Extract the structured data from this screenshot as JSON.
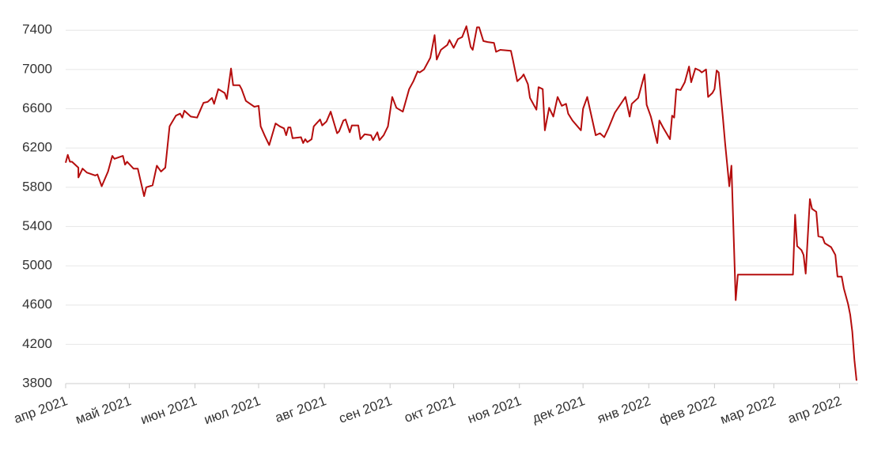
{
  "chart_data": {
    "type": "line",
    "color": "#b50d0d",
    "grid": true,
    "x": [
      0,
      1,
      2,
      3,
      6,
      6,
      8,
      10,
      14,
      15,
      17,
      20,
      22,
      23,
      27,
      28,
      29,
      32,
      34,
      37,
      38,
      41,
      43,
      45,
      47,
      49,
      52,
      54,
      55,
      56,
      59,
      62,
      65,
      67,
      69,
      70,
      72,
      75,
      76,
      78,
      79,
      82,
      83,
      85,
      89,
      91,
      92,
      94,
      96,
      99,
      101,
      103,
      104,
      105,
      106,
      107,
      111,
      112,
      113,
      114,
      116,
      117,
      120,
      121,
      123,
      125,
      128,
      129,
      131,
      132,
      134,
      135,
      138,
      139,
      141,
      144,
      145,
      147,
      148,
      150,
      152,
      154,
      156,
      159,
      162,
      164,
      166,
      167,
      169,
      172,
      174,
      175,
      177,
      180,
      181,
      183,
      185,
      187,
      189,
      191,
      192,
      194,
      195,
      197,
      199,
      202,
      203,
      205,
      210,
      211,
      213,
      215,
      216,
      218,
      219,
      222,
      223,
      225,
      226,
      228,
      230,
      232,
      234,
      236,
      237,
      239,
      243,
      244,
      246,
      247,
      250,
      252,
      254,
      256,
      259,
      264,
      266,
      267,
      270,
      273,
      274,
      276,
      279,
      280,
      282,
      285,
      286,
      287,
      288,
      290,
      292,
      294,
      295,
      297,
      299,
      300,
      302,
      303,
      305,
      306,
      307,
      308,
      310,
      311,
      313,
      314,
      316,
      317,
      343,
      344,
      345,
      347,
      348,
      349,
      351,
      352,
      354,
      355,
      357,
      358,
      361,
      363,
      364,
      366,
      367,
      369,
      370,
      371,
      372,
      373
    ],
    "values": [
      6050,
      6130,
      6060,
      6060,
      6000,
      5900,
      5990,
      5950,
      5920,
      5930,
      5810,
      5960,
      6120,
      6090,
      6120,
      6030,
      6060,
      5990,
      5990,
      5710,
      5800,
      5820,
      6020,
      5960,
      6000,
      6420,
      6530,
      6550,
      6510,
      6580,
      6520,
      6510,
      6660,
      6670,
      6710,
      6650,
      6800,
      6760,
      6700,
      7010,
      6840,
      6840,
      6800,
      6680,
      6620,
      6630,
      6420,
      6320,
      6230,
      6450,
      6420,
      6400,
      6330,
      6410,
      6410,
      6300,
      6310,
      6250,
      6290,
      6260,
      6290,
      6420,
      6490,
      6430,
      6470,
      6570,
      6350,
      6370,
      6480,
      6490,
      6360,
      6430,
      6430,
      6290,
      6340,
      6330,
      6280,
      6360,
      6280,
      6330,
      6420,
      6720,
      6610,
      6570,
      6800,
      6880,
      6980,
      6970,
      7000,
      7120,
      7350,
      7100,
      7200,
      7250,
      7300,
      7220,
      7310,
      7330,
      7440,
      7230,
      7200,
      7430,
      7430,
      7290,
      7280,
      7270,
      7180,
      7200,
      7190,
      7090,
      6880,
      6920,
      6950,
      6850,
      6710,
      6590,
      6820,
      6800,
      6380,
      6610,
      6520,
      6720,
      6630,
      6650,
      6550,
      6480,
      6380,
      6600,
      6720,
      6620,
      6330,
      6350,
      6310,
      6400,
      6560,
      6720,
      6520,
      6650,
      6710,
      6950,
      6640,
      6520,
      6250,
      6480,
      6400,
      6290,
      6530,
      6510,
      6800,
      6790,
      6870,
      7030,
      6870,
      7010,
      6990,
      6970,
      7000,
      6720,
      6760,
      6800,
      6990,
      6970,
      6500,
      6250,
      5810,
      6020,
      4650,
      4910,
      4910,
      5520,
      5200,
      5160,
      5110,
      4920,
      5680,
      5580,
      5550,
      5300,
      5290,
      5230,
      5190,
      5110,
      4890,
      4890,
      4770,
      4610,
      4500,
      4330,
      4040,
      3830
    ],
    "xlim": [
      0,
      373
    ],
    "xticks": [
      {
        "value": 0,
        "label": "апр 2021"
      },
      {
        "value": 30,
        "label": "май 2021"
      },
      {
        "value": 61,
        "label": "июн 2021"
      },
      {
        "value": 91,
        "label": "июл 2021"
      },
      {
        "value": 122,
        "label": "авг 2021"
      },
      {
        "value": 153,
        "label": "сен 2021"
      },
      {
        "value": 183,
        "label": "окт 2021"
      },
      {
        "value": 214,
        "label": "ноя 2021"
      },
      {
        "value": 244,
        "label": "дек 2021"
      },
      {
        "value": 275,
        "label": "янв 2022"
      },
      {
        "value": 306,
        "label": "фев 2022"
      },
      {
        "value": 334,
        "label": "мар 2022"
      },
      {
        "value": 365,
        "label": "апр 2022"
      }
    ],
    "ylim": [
      3800,
      7450
    ],
    "yticks": [
      3800,
      4200,
      4600,
      5000,
      5400,
      5800,
      6200,
      6600,
      7000,
      7400
    ]
  }
}
